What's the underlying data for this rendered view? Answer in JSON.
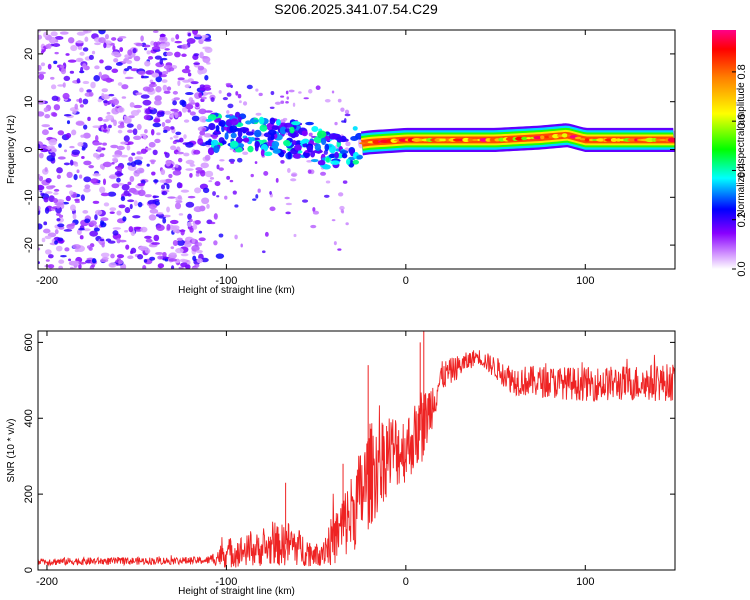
{
  "title": "S206.2025.341.07.54.C29",
  "chart_data": [
    {
      "type": "heatmap",
      "name": "spectrogram",
      "xlabel": "Height of straight line (km)",
      "ylabel": "Frequency (Hz)",
      "xlim": [
        -205,
        150
      ],
      "ylim": [
        -25,
        25
      ],
      "xticks": [
        -200,
        -100,
        0,
        100
      ],
      "yticks": [
        20,
        10,
        0,
        -10,
        -20
      ],
      "colorbar": {
        "label": "Normalized spectral amplitude",
        "range": [
          0.0,
          0.97
        ],
        "ticks": [
          0.0,
          0.2,
          0.4,
          0.6,
          0.8
        ],
        "tick_labels": [
          "0.0",
          "0.2",
          "0.4",
          "0.6",
          "0.8"
        ],
        "colormap": [
          "#ffffff",
          "#8800ff",
          "#0000ff",
          "#00ffff",
          "#00ff00",
          "#ffff00",
          "#ff8000",
          "#ff0000",
          "#ff0088"
        ]
      },
      "noise_region_x": [
        -205,
        -110
      ],
      "ridge": [
        {
          "x": -110,
          "f": 3.5
        },
        {
          "x": -100,
          "f": 3.5
        },
        {
          "x": -90,
          "f": 4.0
        },
        {
          "x": -80,
          "f": 3.0
        },
        {
          "x": -70,
          "f": 2.0
        },
        {
          "x": -60,
          "f": 2.5
        },
        {
          "x": -50,
          "f": 1.0
        },
        {
          "x": -40,
          "f": -1.0
        },
        {
          "x": -35,
          "f": -1.5
        },
        {
          "x": -30,
          "f": 1.0
        },
        {
          "x": -20,
          "f": 1.5
        },
        {
          "x": 0,
          "f": 2.0
        },
        {
          "x": 50,
          "f": 2.0
        },
        {
          "x": 75,
          "f": 2.5
        },
        {
          "x": 90,
          "f": 3.0
        },
        {
          "x": 100,
          "f": 2.0
        },
        {
          "x": 150,
          "f": 2.0
        }
      ]
    },
    {
      "type": "line",
      "name": "snr",
      "xlabel": "Height of straight line (km)",
      "ylabel": "SNR (10 * v/v)",
      "xlim": [
        -205,
        150
      ],
      "ylim": [
        0,
        630
      ],
      "xticks": [
        -200,
        -100,
        0,
        100
      ],
      "yticks": [
        0,
        200,
        400,
        600
      ],
      "color": "#ee2222",
      "envelope": [
        {
          "x": -205,
          "mean": 22,
          "amp": 10
        },
        {
          "x": -110,
          "mean": 25,
          "amp": 10
        },
        {
          "x": -100,
          "mean": 45,
          "amp": 40
        },
        {
          "x": -80,
          "mean": 55,
          "amp": 45
        },
        {
          "x": -65,
          "mean": 70,
          "amp": 60
        },
        {
          "x": -50,
          "mean": 40,
          "amp": 30
        },
        {
          "x": -40,
          "mean": 80,
          "amp": 70
        },
        {
          "x": -30,
          "mean": 150,
          "amp": 110
        },
        {
          "x": -20,
          "mean": 250,
          "amp": 140
        },
        {
          "x": -10,
          "mean": 310,
          "amp": 110
        },
        {
          "x": 0,
          "mean": 320,
          "amp": 90
        },
        {
          "x": 10,
          "mean": 380,
          "amp": 90
        },
        {
          "x": 20,
          "mean": 510,
          "amp": 40
        },
        {
          "x": 40,
          "mean": 565,
          "amp": 20
        },
        {
          "x": 60,
          "mean": 500,
          "amp": 40
        },
        {
          "x": 100,
          "mean": 490,
          "amp": 45
        },
        {
          "x": 150,
          "mean": 495,
          "amp": 50
        }
      ],
      "spikes": [
        {
          "x": -67,
          "y": 230
        },
        {
          "x": -21,
          "y": 540
        },
        {
          "x": 10,
          "y": 630
        },
        {
          "x": 8,
          "y": 600
        },
        {
          "x": -35,
          "y": 280
        }
      ]
    }
  ]
}
